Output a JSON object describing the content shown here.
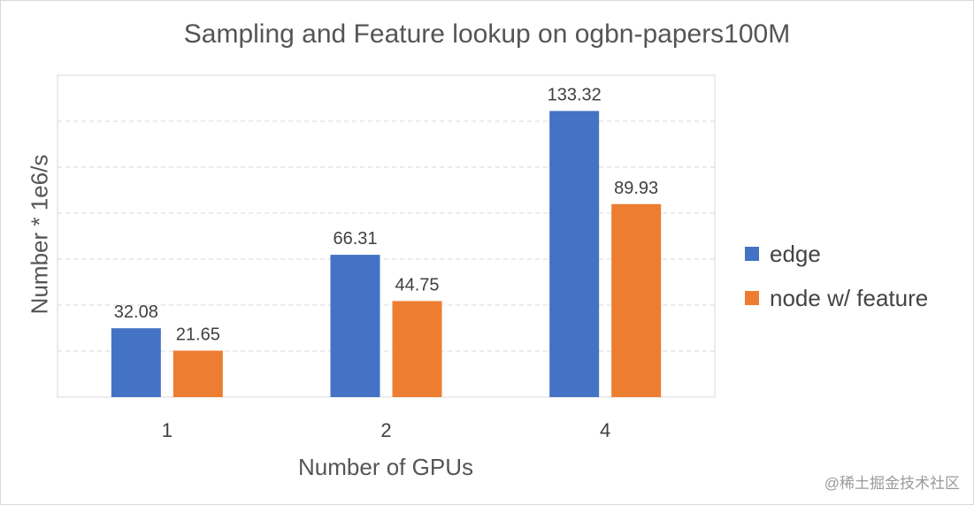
{
  "chart_data": {
    "type": "bar",
    "title": "Sampling and Feature lookup on ogbn-papers100M",
    "xlabel": "Number of GPUs",
    "ylabel": "Number * 1e6/s",
    "categories": [
      "1",
      "2",
      "4"
    ],
    "series": [
      {
        "name": "edge",
        "color": "#4472C4",
        "values": [
          32.08,
          66.31,
          133.32
        ],
        "labels": [
          "32.08",
          "66.31",
          "133.32"
        ]
      },
      {
        "name": "node w/ feature",
        "color": "#ED7D31",
        "values": [
          21.65,
          44.75,
          89.93
        ],
        "labels": [
          "21.65",
          "44.75",
          "89.93"
        ]
      }
    ],
    "ylim": [
      0,
      150
    ],
    "grid": "dashed horizontal",
    "legend_position": "right"
  },
  "watermark": "@稀土掘金技术社区"
}
